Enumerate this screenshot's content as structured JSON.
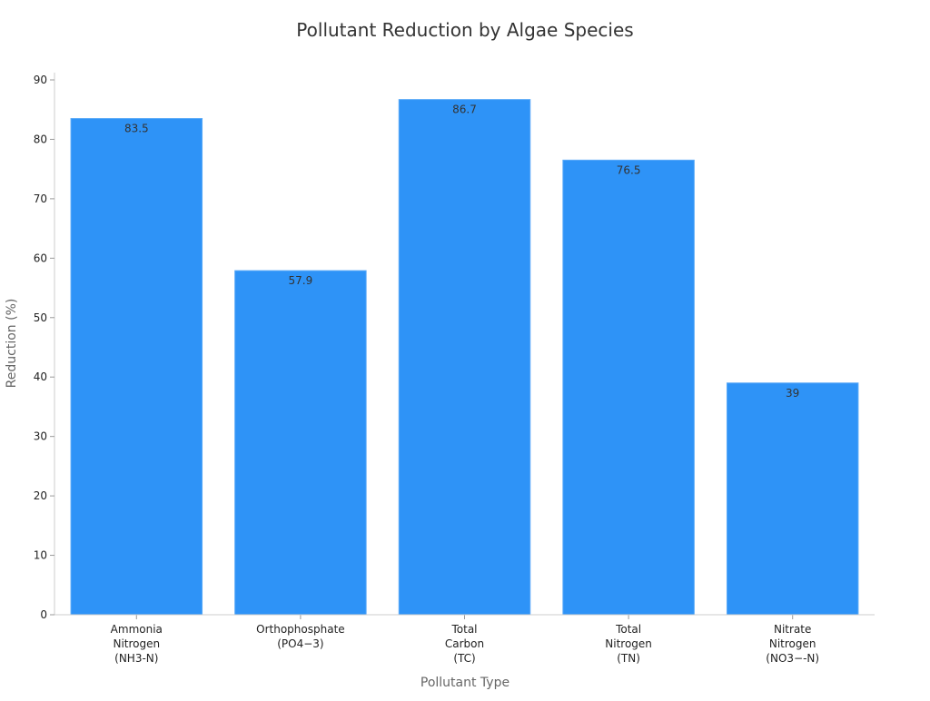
{
  "chart_data": {
    "type": "bar",
    "title": "Pollutant Reduction by Algae Species",
    "xlabel": "Pollutant Type",
    "ylabel": "Reduction (%)",
    "categories": [
      [
        "Ammonia",
        "Nitrogen",
        "(NH3-N)"
      ],
      [
        "Orthophosphate",
        "(PO4−3)"
      ],
      [
        "Total",
        "Carbon",
        "(TC)"
      ],
      [
        "Total",
        "Nitrogen",
        "(TN)"
      ],
      [
        "Nitrate",
        "Nitrogen",
        "(NO3−-N)"
      ]
    ],
    "values": [
      83.5,
      57.9,
      86.7,
      76.5,
      39
    ],
    "data_labels": [
      "83.5",
      "57.9",
      "86.7",
      "76.5",
      "39"
    ],
    "ylim": [
      0,
      90
    ],
    "yticks": [
      0,
      10,
      20,
      30,
      40,
      50,
      60,
      70,
      80,
      90
    ],
    "grid": false,
    "bar_color": "#2e93f7"
  }
}
